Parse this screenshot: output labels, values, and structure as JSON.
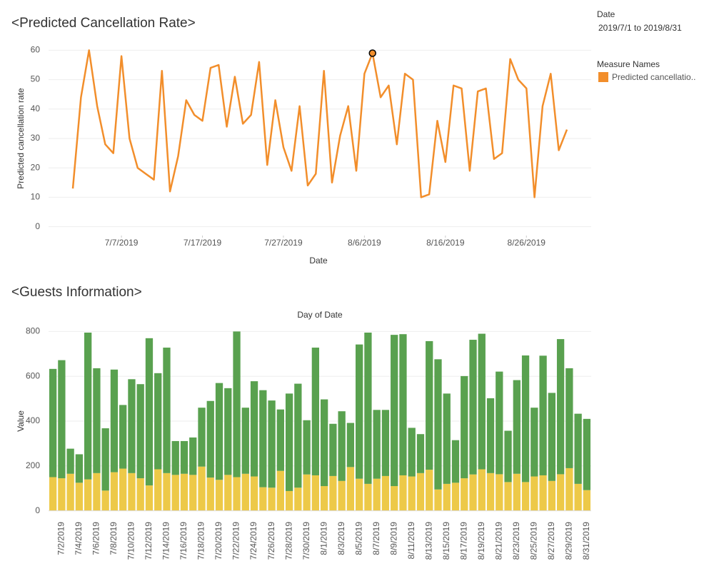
{
  "panel": {
    "date_title": "Date",
    "date_range": "2019/7/1 to 2019/8/31",
    "legend_title": "Measure Names"
  },
  "chart_data": [
    {
      "type": "line",
      "title": "<Predicted Cancellation Rate>",
      "xlabel": "Date",
      "ylabel": "Predicted cancellation rate",
      "x": [
        "7/1/2019",
        "7/2/2019",
        "7/3/2019",
        "7/4/2019",
        "7/5/2019",
        "7/6/2019",
        "7/7/2019",
        "7/8/2019",
        "7/9/2019",
        "7/10/2019",
        "7/11/2019",
        "7/12/2019",
        "7/13/2019",
        "7/14/2019",
        "7/15/2019",
        "7/16/2019",
        "7/17/2019",
        "7/18/2019",
        "7/19/2019",
        "7/20/2019",
        "7/21/2019",
        "7/22/2019",
        "7/23/2019",
        "7/24/2019",
        "7/25/2019",
        "7/26/2019",
        "7/27/2019",
        "7/28/2019",
        "7/29/2019",
        "7/30/2019",
        "7/31/2019",
        "8/1/2019",
        "8/2/2019",
        "8/3/2019",
        "8/4/2019",
        "8/5/2019",
        "8/6/2019",
        "8/7/2019",
        "8/8/2019",
        "8/9/2019",
        "8/10/2019",
        "8/11/2019",
        "8/12/2019",
        "8/13/2019",
        "8/14/2019",
        "8/15/2019",
        "8/16/2019",
        "8/17/2019",
        "8/18/2019",
        "8/19/2019",
        "8/20/2019",
        "8/21/2019",
        "8/22/2019",
        "8/23/2019",
        "8/24/2019",
        "8/25/2019",
        "8/26/2019",
        "8/27/2019",
        "8/28/2019",
        "8/29/2019",
        "8/30/2019",
        "8/31/2019"
      ],
      "series": [
        {
          "name": "Predicted cancellatio..",
          "color": "#f28e2b",
          "values": [
            13,
            44,
            60,
            41,
            28,
            25,
            58,
            30,
            20,
            18,
            16,
            53,
            12,
            24,
            43,
            38,
            36,
            54,
            55,
            34,
            51,
            35,
            38,
            56,
            21,
            43,
            27,
            19,
            41,
            14,
            18,
            53,
            15,
            31,
            41,
            19,
            52,
            59,
            44,
            48,
            28,
            52,
            50,
            10,
            11,
            36,
            22,
            48,
            47,
            19,
            46,
            47,
            23,
            25,
            57,
            50,
            47,
            10,
            41,
            52,
            26,
            33
          ]
        }
      ],
      "selected": "8/7/2019",
      "xlim": [
        "6/28/2019",
        "9/3/2019"
      ],
      "xticks": [
        "7/7/2019",
        "7/17/2019",
        "7/27/2019",
        "8/6/2019",
        "8/16/2019",
        "8/26/2019"
      ],
      "ylim": [
        -3,
        63
      ],
      "yticks": [
        0,
        10,
        20,
        30,
        40,
        50,
        60
      ],
      "grid": true
    },
    {
      "type": "bar",
      "stacked": true,
      "title": "<Guests Information>",
      "column_header": "Day of Date",
      "ylabel": "Value",
      "categories": [
        null,
        "7/2/2019",
        null,
        "7/4/2019",
        null,
        "7/6/2019",
        null,
        "7/8/2019",
        null,
        "7/10/2019",
        null,
        "7/12/2019",
        null,
        "7/14/2019",
        null,
        "7/16/2019",
        null,
        "7/18/2019",
        null,
        "7/20/2019",
        null,
        "7/22/2019",
        null,
        "7/24/2019",
        null,
        "7/26/2019",
        null,
        "7/28/2019",
        null,
        "7/30/2019",
        null,
        "8/1/2019",
        null,
        "8/3/2019",
        null,
        "8/5/2019",
        null,
        "8/7/2019",
        null,
        "8/9/2019",
        null,
        "8/11/2019",
        null,
        "8/13/2019",
        null,
        "8/15/2019",
        null,
        "8/17/2019",
        null,
        "8/19/2019",
        null,
        "8/21/2019",
        null,
        "8/23/2019",
        null,
        "8/25/2019",
        null,
        "8/27/2019",
        null,
        "8/29/2019",
        null,
        "8/31/2019"
      ],
      "series": [
        {
          "color": "#edc948",
          "values": [
            150,
            145,
            165,
            125,
            140,
            168,
            90,
            172,
            188,
            168,
            145,
            113,
            185,
            168,
            160,
            165,
            160,
            197,
            148,
            138,
            160,
            150,
            165,
            153,
            105,
            103,
            178,
            88,
            103,
            162,
            158,
            110,
            155,
            133,
            195,
            143,
            120,
            143,
            155,
            110,
            158,
            153,
            168,
            183,
            95,
            120,
            125,
            145,
            162,
            185,
            168,
            163,
            128,
            165,
            128,
            153,
            158,
            133,
            163,
            190,
            120,
            92
          ]
        },
        {
          "color": "#59a14f",
          "values": [
            483,
            527,
            112,
            127,
            655,
            468,
            278,
            458,
            284,
            419,
            420,
            657,
            429,
            560,
            151,
            146,
            167,
            263,
            342,
            432,
            387,
            650,
            295,
            425,
            433,
            389,
            274,
            435,
            464,
            242,
            570,
            387,
            233,
            311,
            197,
            599,
            675,
            307,
            295,
            675,
            630,
            217,
            174,
            574,
            581,
            403,
            190,
            456,
            601,
            605,
            334,
            458,
            229,
            418,
            565,
            307,
            534,
            393,
            603,
            446,
            313,
            318
          ]
        }
      ],
      "ylim": [
        -30,
        830
      ],
      "yticks": [
        0,
        200,
        400,
        600,
        800
      ],
      "grid": true
    }
  ]
}
